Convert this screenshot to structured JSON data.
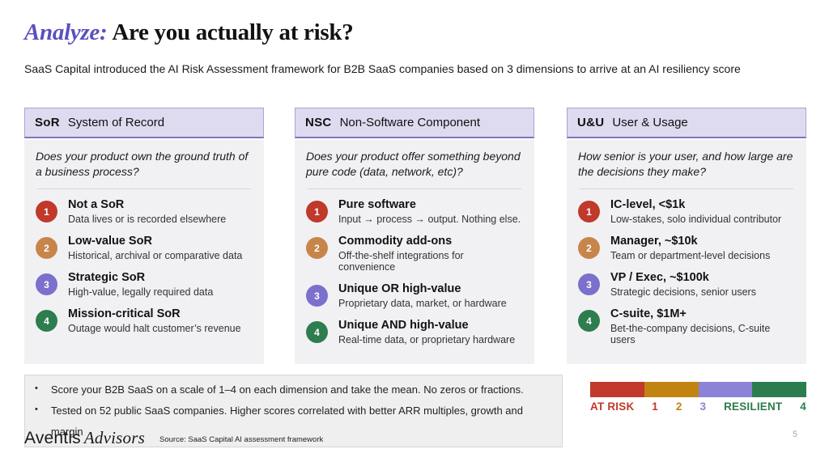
{
  "slide": {
    "title_accent": "Analyze:",
    "title_rest": "Are you actually at risk?",
    "subtitle": "SaaS Capital introduced the AI Risk Assessment framework for B2B SaaS companies based on 3 dimensions to arrive at an AI resiliency score",
    "page_number": "5",
    "source": "Source: SaaS Capital AI assessment framework",
    "logo_name": "Aventis",
    "logo_suffix": "Advisors"
  },
  "colors": {
    "accent_purple": "#5a4fbe",
    "level_1_red": "#c0392b",
    "level_2_orange": "#c8854a",
    "level_3_purple": "#7b70cc",
    "level_4_green": "#2e7d4f",
    "scale_gold": "#c28410",
    "scale_purple": "#8c82d8",
    "header_bg": "#dedaf0",
    "panel_bg": "#f1f1f3",
    "notes_bg": "#efefef"
  },
  "columns": [
    {
      "abbr": "SoR",
      "name": "System of Record",
      "question": "Does your product own the ground truth of a business process?",
      "items": [
        {
          "num": "1",
          "title": "Not a SoR",
          "desc": "Data lives or is recorded elsewhere"
        },
        {
          "num": "2",
          "title": "Low-value SoR",
          "desc": "Historical, archival or comparative data"
        },
        {
          "num": "3",
          "title": "Strategic SoR",
          "desc": "High-value, legally required data"
        },
        {
          "num": "4",
          "title": "Mission-critical SoR",
          "desc": "Outage would halt customer’s revenue"
        }
      ]
    },
    {
      "abbr": "NSC",
      "name": "Non-Software Component",
      "question": "Does your product offer something beyond pure code (data, network, etc)?",
      "items": [
        {
          "num": "1",
          "title": "Pure software",
          "desc": "Input → process → output. Nothing else."
        },
        {
          "num": "2",
          "title": "Commodity add-ons",
          "desc": "Off-the-shelf integrations for convenience"
        },
        {
          "num": "3",
          "title": "Unique OR high-value",
          "desc": "Proprietary data, market, or hardware"
        },
        {
          "num": "4",
          "title": "Unique AND high-value",
          "desc": "Real-time data, or proprietary hardware"
        }
      ]
    },
    {
      "abbr": "U&U",
      "name": "User & Usage",
      "question": "How senior is your user, and how large are the decisions they make?",
      "items": [
        {
          "num": "1",
          "title": "IC-level, <$1k",
          "desc": "Low-stakes, solo individual contributor"
        },
        {
          "num": "2",
          "title": "Manager, ~$10k",
          "desc": "Team or department-level decisions"
        },
        {
          "num": "3",
          "title": "VP / Exec, ~$100k",
          "desc": "Strategic decisions, senior users"
        },
        {
          "num": "4",
          "title": "C-suite, $1M+",
          "desc": "Bet-the-company decisions, C-suite users"
        }
      ]
    }
  ],
  "notes": {
    "bullet": "•",
    "items": [
      "Score your B2B SaaS on a scale of 1–4 on each dimension and take the mean. No zeros or fractions.",
      "Tested on 52 public SaaS companies. Higher scores correlated with better ARR multiples, growth and margin"
    ]
  },
  "scale": {
    "labels": [
      {
        "text": "AT RISK"
      },
      {
        "text": "1"
      },
      {
        "text": "2"
      },
      {
        "text": "3"
      },
      {
        "text": "RESILIENT"
      },
      {
        "text": "4"
      }
    ]
  }
}
